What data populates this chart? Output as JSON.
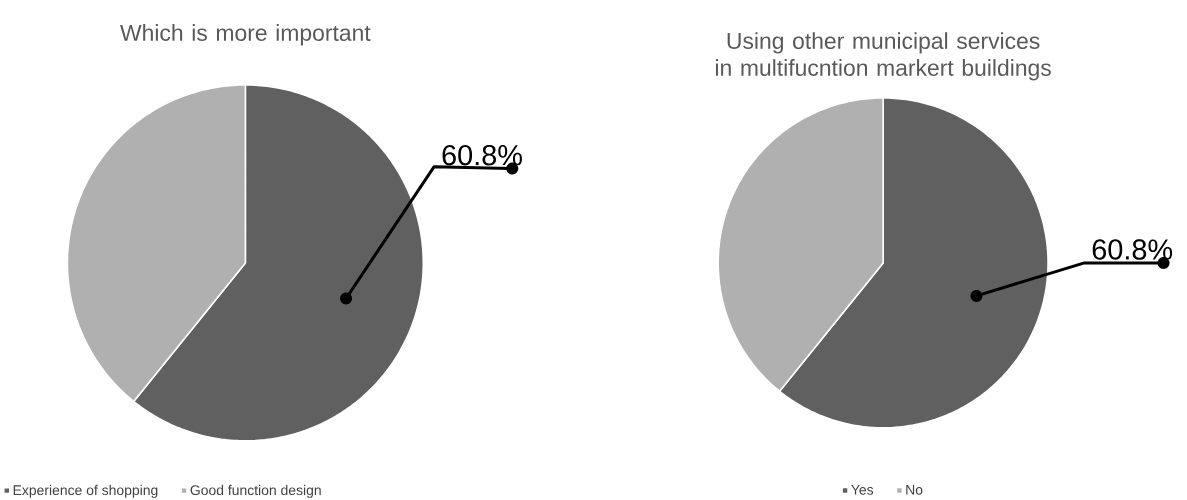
{
  "chart_data": [
    {
      "type": "pie",
      "title": "Which is more important",
      "categories": [
        "Experience of shopping",
        "Good function design"
      ],
      "values": [
        60.8,
        39.2
      ],
      "colors": [
        "#606060",
        "#b0b0b0"
      ],
      "value_labels": [
        "60.8%",
        null
      ],
      "legend": "bottom left"
    },
    {
      "type": "pie",
      "title": "Using other municipal services in multifucntion markert buildings",
      "categories": [
        "Yes",
        "No"
      ],
      "values": [
        60.8,
        39.2
      ],
      "colors": [
        "#606060",
        "#b0b0b0"
      ],
      "value_labels": [
        "60.8%",
        null
      ],
      "legend": "bottom"
    }
  ]
}
